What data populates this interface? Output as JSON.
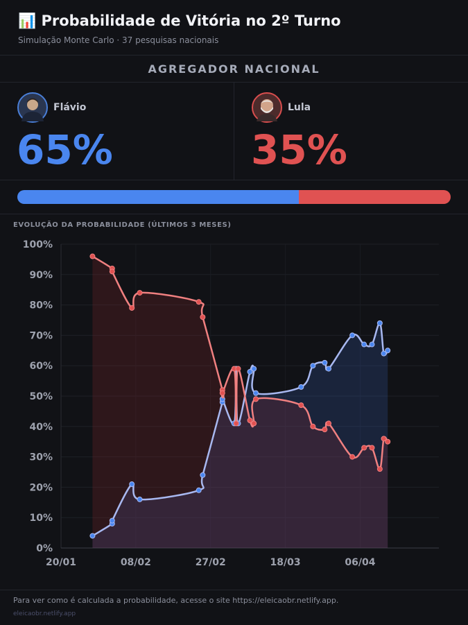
{
  "header": {
    "icon": "📊",
    "title": "Probabilidade de Vitória no 2º Turno",
    "subtitle": "Simulação Monte Carlo · 37 pesquisas nacionais"
  },
  "aggregator_label": "AGREGADOR NACIONAL",
  "candidates": [
    {
      "name": "Flávio",
      "pct_label": "65%",
      "share": 0.65,
      "color": "#4a86ef"
    },
    {
      "name": "Lula",
      "pct_label": "35%",
      "share": 0.35,
      "color": "#e05252"
    }
  ],
  "chart_section_label": "EVOLUÇÃO DA PROBABILIDADE (ÚLTIMOS 3 MESES)",
  "chart_data": {
    "type": "line",
    "title": "EVOLUÇÃO DA PROBABILIDADE (ÚLTIMOS 3 MESES)",
    "x_unit": "days since 20/01",
    "xlim": [
      0,
      96
    ],
    "ylim": [
      0,
      100
    ],
    "x_ticks": [
      {
        "x": 0,
        "label": "20/01"
      },
      {
        "x": 19,
        "label": "08/02"
      },
      {
        "x": 38,
        "label": "27/02"
      },
      {
        "x": 57,
        "label": "18/03"
      },
      {
        "x": 76,
        "label": "06/04"
      }
    ],
    "y_ticks": [
      {
        "y": 0,
        "label": "0%"
      },
      {
        "y": 10,
        "label": "10%"
      },
      {
        "y": 20,
        "label": "20%"
      },
      {
        "y": 30,
        "label": "30%"
      },
      {
        "y": 40,
        "label": "40%"
      },
      {
        "y": 50,
        "label": "50%"
      },
      {
        "y": 60,
        "label": "60%"
      },
      {
        "y": 70,
        "label": "70%"
      },
      {
        "y": 80,
        "label": "80%"
      },
      {
        "y": 90,
        "label": "90%"
      },
      {
        "y": 100,
        "label": "100%"
      }
    ],
    "x": [
      8,
      13,
      13,
      18,
      20,
      35,
      36,
      41,
      41,
      44,
      44.5,
      45,
      48,
      49,
      49.5,
      61,
      64,
      67,
      68,
      74,
      77,
      79,
      81,
      82,
      83
    ],
    "series": [
      {
        "name": "Flávio",
        "color": "#a8b8f0",
        "marker": "#4a86ef",
        "values": [
          4,
          8,
          9,
          21,
          16,
          19,
          24,
          48,
          49,
          41,
          59,
          41,
          58,
          59,
          51,
          53,
          60,
          61,
          59,
          70,
          67,
          67,
          74,
          64,
          65
        ]
      },
      {
        "name": "Lula",
        "color": "#f08080",
        "marker": "#e05252",
        "values": [
          96,
          92,
          91,
          79,
          84,
          81,
          76,
          52,
          51,
          59,
          41,
          59,
          42,
          41,
          49,
          47,
          40,
          39,
          41,
          30,
          33,
          33,
          26,
          36,
          35
        ]
      }
    ]
  },
  "footer": {
    "note": "Para ver como é calculada a probabilidade, acesse o site https://eleicaobr.netlify.app.",
    "site": "eleicaobr.netlify.app"
  }
}
